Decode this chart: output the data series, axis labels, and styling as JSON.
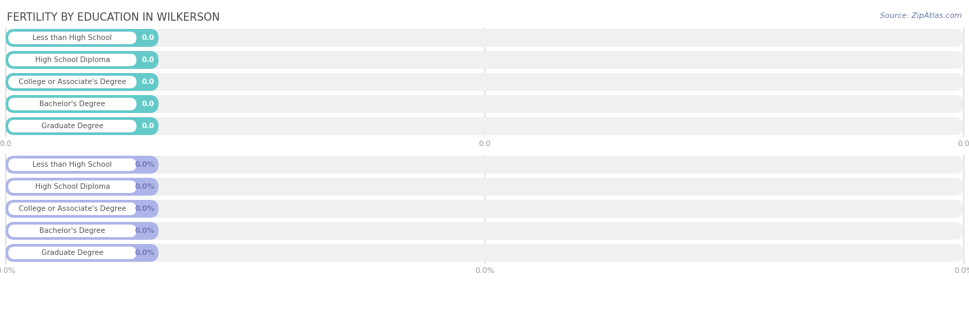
{
  "title": "FERTILITY BY EDUCATION IN WILKERSON",
  "source": "Source: ZipAtlas.com",
  "categories": [
    "Less than High School",
    "High School Diploma",
    "College or Associate's Degree",
    "Bachelor's Degree",
    "Graduate Degree"
  ],
  "values_top": [
    0.0,
    0.0,
    0.0,
    0.0,
    0.0
  ],
  "values_bottom": [
    0.0,
    0.0,
    0.0,
    0.0,
    0.0
  ],
  "bar_color_top": "#63c9c9",
  "bar_color_bottom": "#adb5e8",
  "bar_bg_color": "#f0f0f0",
  "label_value_color_top": "#ffffff",
  "label_value_color_bottom": "#7878bb",
  "label_text_color": "#555555",
  "background_color": "#ffffff",
  "title_fontsize": 11,
  "label_fontsize": 7.5,
  "value_fontsize": 7.5,
  "tick_fontsize": 8,
  "source_fontsize": 8
}
